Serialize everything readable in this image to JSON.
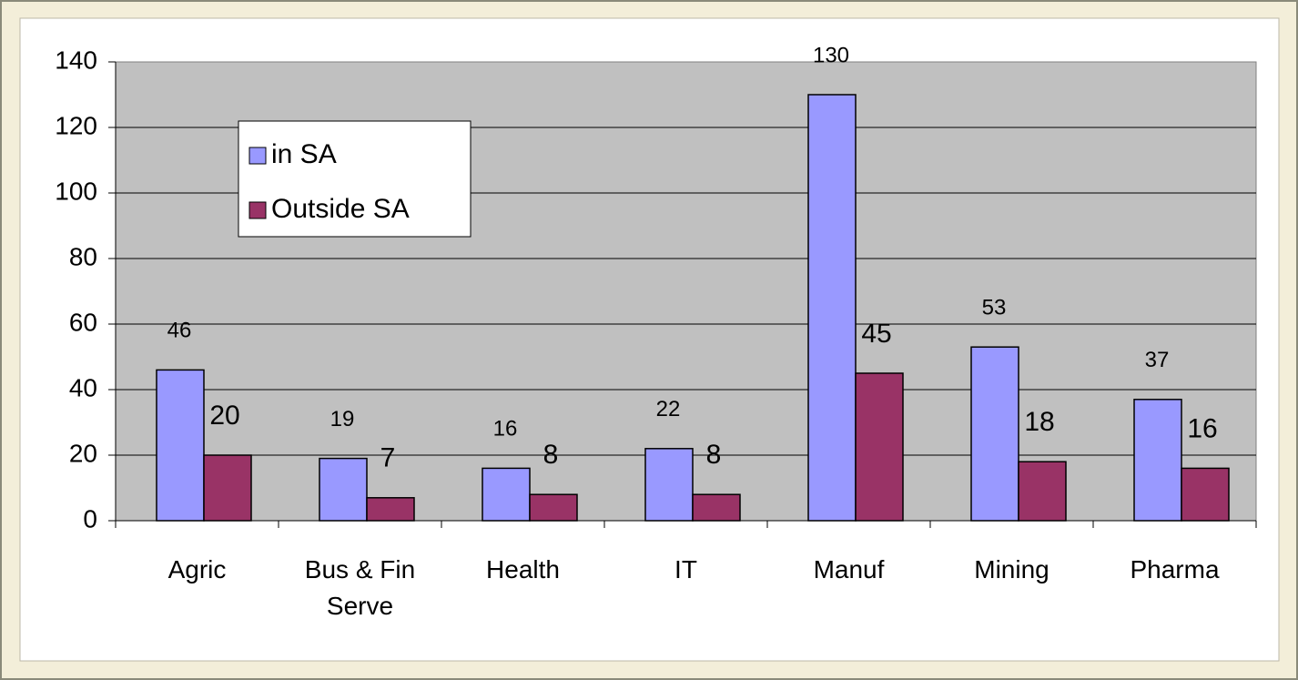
{
  "chart_data": {
    "type": "bar",
    "categories": [
      "Agric",
      "Bus & Fin Serve",
      "Health",
      "IT",
      "Manuf",
      "Mining",
      "Pharma"
    ],
    "series": [
      {
        "name": "in SA",
        "color": "#9999ff",
        "values": [
          46,
          19,
          16,
          22,
          130,
          53,
          37
        ]
      },
      {
        "name": "Outside SA",
        "color": "#993366",
        "values": [
          20,
          7,
          8,
          8,
          45,
          18,
          16
        ]
      }
    ],
    "ylim": [
      0,
      140
    ],
    "yticks": [
      0,
      20,
      40,
      60,
      80,
      100,
      120,
      140
    ],
    "grid": true,
    "legend": "upper left"
  }
}
